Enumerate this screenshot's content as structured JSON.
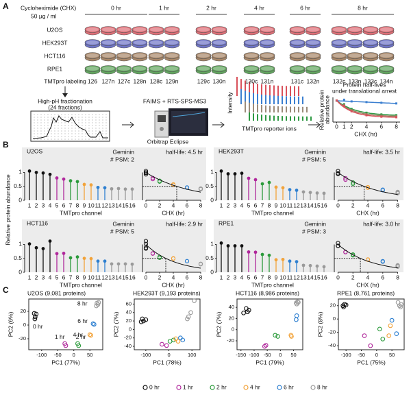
{
  "panel_labels": [
    "A",
    "B",
    "C"
  ],
  "panel_a": {
    "treatment": "Cycloheximide (CHX)",
    "dose": "50 μg / ml",
    "timepoints": [
      "0 hr",
      "1 hr",
      "2 hr",
      "4 hr",
      "6 hr",
      "8 hr"
    ],
    "cell_lines": [
      {
        "name": "U2OS",
        "color": "#df6f77"
      },
      {
        "name": "HEK293T",
        "color": "#6f74c6"
      },
      {
        "name": "HCT116",
        "color": "#a88769"
      },
      {
        "name": "RPE1",
        "color": "#62a55f"
      }
    ],
    "labeling_title": "TMTpro labeling",
    "channels": [
      "126",
      "127n",
      "127c",
      "128n",
      "128c",
      "129n",
      "129c",
      "130n",
      "130c",
      "131n",
      "131c",
      "132n",
      "132c",
      "133n",
      "133c",
      "134n"
    ],
    "fractionation": "High-pH fractionation",
    "fractions": "(24 fractions)",
    "method": "FAIMS + RTS-SPS-MS3",
    "instrument": "Orbitrap Eclipse",
    "intensity_label": "Intensity",
    "reporter_label": "TMTpro reporter ions",
    "halflife": {
      "title": "Protein half-lives",
      "subtitle": "under translational arrest",
      "ylabel": [
        "Relative protein",
        "abundance"
      ],
      "xlabel": "CHX (hr)",
      "xlim": [
        -0.5,
        8.5
      ],
      "xticks": [
        0,
        1,
        2,
        4,
        6,
        8
      ]
    }
  },
  "b_ylabel": "Relative protein abundance",
  "chart_data": [
    {
      "type": "lollipop",
      "title": "U2OS",
      "protein": "Geminin",
      "psm": "# PSM: 2",
      "xlabel": "TMTpro channel",
      "categories": [
        "1",
        "2",
        "3",
        "4",
        "5",
        "6",
        "7",
        "8",
        "9",
        "10",
        "11",
        "12",
        "13",
        "14",
        "15",
        "16"
      ],
      "values": [
        1.05,
        1.0,
        0.98,
        0.93,
        0.8,
        0.76,
        0.7,
        0.67,
        0.57,
        0.55,
        0.46,
        0.45,
        0.41,
        0.42,
        0.4,
        0.4
      ],
      "ylim": [
        0,
        1.9
      ],
      "yticks": [
        0,
        0.5,
        1
      ],
      "x": [
        0,
        0,
        0,
        0,
        1,
        1,
        2,
        2,
        4,
        4,
        6,
        6,
        8,
        8,
        8,
        8
      ],
      "xlim": [
        -0.5,
        8.5
      ],
      "xticks": [
        0,
        2,
        4,
        6,
        8
      ],
      "x2label": "CHX (hr)",
      "half_life": 4.5,
      "half_life_label": "half-life: 4.5 hr"
    },
    {
      "type": "lollipop",
      "title": "HEK293T",
      "protein": "Geminin",
      "psm": "# PSM: 5",
      "xlabel": "TMTpro channel",
      "categories": [
        "1",
        "2",
        "3",
        "4",
        "5",
        "6",
        "7",
        "8",
        "9",
        "10",
        "11",
        "12",
        "13",
        "14",
        "15",
        "16"
      ],
      "values": [
        1.05,
        0.95,
        0.95,
        0.97,
        0.79,
        0.74,
        0.59,
        0.64,
        0.47,
        0.45,
        0.38,
        0.36,
        0.3,
        0.28,
        0.26,
        0.25
      ],
      "ylim": [
        0,
        1.9
      ],
      "yticks": [
        0,
        0.5,
        1
      ],
      "x": [
        0,
        0,
        0,
        0,
        1,
        1,
        2,
        2,
        4,
        4,
        6,
        6,
        8,
        8,
        8,
        8
      ],
      "xlim": [
        -0.5,
        8.5
      ],
      "xticks": [
        0,
        2,
        4,
        6,
        8
      ],
      "x2label": "CHX (hr)",
      "half_life": 3.5,
      "half_life_label": "half-life: 3.5 hr"
    },
    {
      "type": "lollipop",
      "title": "HCT116",
      "protein": "Geminin",
      "psm": "# PSM: 5",
      "xlabel": "TMTpro channel",
      "categories": [
        "1",
        "2",
        "3",
        "4",
        "5",
        "6",
        "7",
        "8",
        "9",
        "10",
        "11",
        "12",
        "13",
        "14",
        "15",
        "16"
      ],
      "values": [
        1.02,
        0.88,
        0.85,
        1.12,
        0.67,
        0.68,
        0.52,
        0.55,
        0.5,
        0.49,
        0.4,
        0.4,
        0.3,
        0.3,
        0.3,
        0.29
      ],
      "ylim": [
        0,
        1.9
      ],
      "yticks": [
        0,
        0.5,
        1
      ],
      "x": [
        0,
        0,
        0,
        0,
        1,
        1,
        2,
        2,
        4,
        4,
        6,
        6,
        8,
        8,
        8,
        8
      ],
      "xlim": [
        -0.5,
        8.5
      ],
      "xticks": [
        0,
        2,
        4,
        6,
        8
      ],
      "x2label": "CHX (hr)",
      "half_life": 2.9,
      "half_life_label": "half-life: 2.9 hr"
    },
    {
      "type": "lollipop",
      "title": "RPE1",
      "protein": "Geminin",
      "psm": "# PSM: 3",
      "xlabel": "TMTpro channel",
      "categories": [
        "1",
        "2",
        "3",
        "4",
        "5",
        "6",
        "7",
        "8",
        "9",
        "10",
        "11",
        "12",
        "13",
        "14",
        "15",
        "16"
      ],
      "values": [
        1.05,
        0.95,
        0.95,
        0.95,
        0.73,
        0.72,
        0.64,
        0.61,
        0.45,
        0.46,
        0.4,
        0.38,
        0.25,
        0.24,
        0.22,
        0.2
      ],
      "ylim": [
        0,
        1.9
      ],
      "yticks": [
        0,
        0.5,
        1
      ],
      "x": [
        0,
        0,
        0,
        0,
        1,
        1,
        2,
        2,
        4,
        4,
        6,
        6,
        8,
        8,
        8,
        8
      ],
      "xlim": [
        -0.5,
        8.5
      ],
      "xticks": [
        0,
        2,
        4,
        6,
        8
      ],
      "x2label": "CHX (hr)",
      "half_life": 3.0,
      "half_life_label": "half-life: 3.0 hr"
    },
    {
      "type": "scatter",
      "title": "U2OS (9,081 proteins)",
      "xlabel": "PC1 (77%)",
      "ylabel": "PC2 (6%)",
      "xlim": [
        -140,
        90
      ],
      "ylim": [
        -36,
        38
      ],
      "xticks": [
        -100,
        -50,
        0,
        50
      ],
      "yticks": [
        -20,
        0,
        20
      ],
      "series": [
        {
          "x": [
            -123,
            -120,
            -117,
            -121
          ],
          "values": [
            17,
            12,
            16,
            9
          ]
        },
        {
          "x": [
            -28,
            -25
          ],
          "values": [
            -27,
            -30
          ]
        },
        {
          "x": [
            12,
            15
          ],
          "values": [
            -27,
            -30
          ]
        },
        {
          "x": [
            50,
            53
          ],
          "values": [
            -14,
            -15
          ]
        },
        {
          "x": [
            60,
            63
          ],
          "values": [
            2,
            1
          ]
        },
        {
          "x": [
            72,
            75,
            70,
            77
          ],
          "values": [
            32,
            30,
            28,
            33
          ]
        }
      ],
      "annotations": [
        "0 hr",
        "1 hr",
        "2 hr",
        "4 hr",
        "6 hr",
        "8 hr"
      ]
    },
    {
      "type": "scatter",
      "title": "HEK293T (9,193 proteins)",
      "xlabel": "PC1 (78%)",
      "ylabel": "PC2 (7%)",
      "xlim": [
        -150,
        135
      ],
      "ylim": [
        -48,
        72
      ],
      "xticks": [
        -100,
        0,
        100
      ],
      "yticks": [
        -40,
        -20,
        0,
        20,
        40,
        60
      ],
      "series": [
        {
          "x": [
            -115,
            -110,
            -100,
            -120
          ],
          "values": [
            25,
            20,
            23,
            18
          ]
        },
        {
          "x": [
            -30,
            -10
          ],
          "values": [
            -35,
            -38
          ]
        },
        {
          "x": [
            5,
            20
          ],
          "values": [
            -28,
            -25
          ]
        },
        {
          "x": [
            30,
            40
          ],
          "values": [
            -22,
            -28
          ]
        },
        {
          "x": [
            50,
            60
          ],
          "values": [
            -20,
            -25
          ]
        },
        {
          "x": [
            80,
            95,
            110,
            85
          ],
          "values": [
            25,
            40,
            68,
            30
          ]
        }
      ]
    },
    {
      "type": "scatter",
      "title": "HCT116  (8,986 proteins)",
      "xlabel": "PC1 (79%)",
      "ylabel": "PC2 (7%)",
      "xlim": [
        -165,
        85
      ],
      "ylim": [
        -36,
        55
      ],
      "xticks": [
        -150,
        -100,
        -50,
        0,
        50
      ],
      "yticks": [
        -20,
        0,
        20,
        40
      ],
      "series": [
        {
          "x": [
            -140,
            -130,
            -125,
            -120
          ],
          "values": [
            30,
            38,
            32,
            35
          ]
        },
        {
          "x": [
            -60,
            -55
          ],
          "values": [
            -30,
            -28
          ]
        },
        {
          "x": [
            -20,
            -10
          ],
          "values": [
            -10,
            -12
          ]
        },
        {
          "x": [
            40,
            42
          ],
          "values": [
            -10,
            -12
          ]
        },
        {
          "x": [
            60,
            62
          ],
          "values": [
            18,
            25
          ]
        },
        {
          "x": [
            60,
            65,
            62,
            68
          ],
          "values": [
            48,
            50,
            46,
            49
          ]
        }
      ]
    },
    {
      "type": "scatter",
      "title": "RPE1  (8,761 proteins)",
      "xlabel": "PC1 (75%)",
      "ylabel": "PC2 (8%)",
      "xlim": [
        -125,
        90
      ],
      "ylim": [
        -46,
        30
      ],
      "xticks": [
        -100,
        -50,
        0,
        50
      ],
      "yticks": [
        -40,
        -20,
        0,
        20
      ],
      "series": [
        {
          "x": [
            -110,
            -105,
            -108,
            -100
          ],
          "values": [
            20,
            22,
            18,
            21
          ]
        },
        {
          "x": [
            -20,
            -40
          ],
          "values": [
            -40,
            -25
          ]
        },
        {
          "x": [
            10,
            20
          ],
          "values": [
            -15,
            -30
          ]
        },
        {
          "x": [
            45,
            40
          ],
          "values": [
            -10,
            -25
          ]
        },
        {
          "x": [
            50,
            65
          ],
          "values": [
            -2,
            -22
          ]
        },
        {
          "x": [
            75,
            70,
            80,
            78
          ],
          "values": [
            20,
            25,
            22,
            18
          ]
        }
      ]
    }
  ],
  "legend": [
    {
      "name": "0 hr",
      "color": "#111111"
    },
    {
      "name": "1 hr",
      "color": "#b0279b"
    },
    {
      "name": "2 hr",
      "color": "#2a9a3a"
    },
    {
      "name": "4 hr",
      "color": "#f2a33a"
    },
    {
      "name": "6 hr",
      "color": "#2d7fd0"
    },
    {
      "name": "8 hr",
      "color": "#9a9a9a"
    }
  ]
}
